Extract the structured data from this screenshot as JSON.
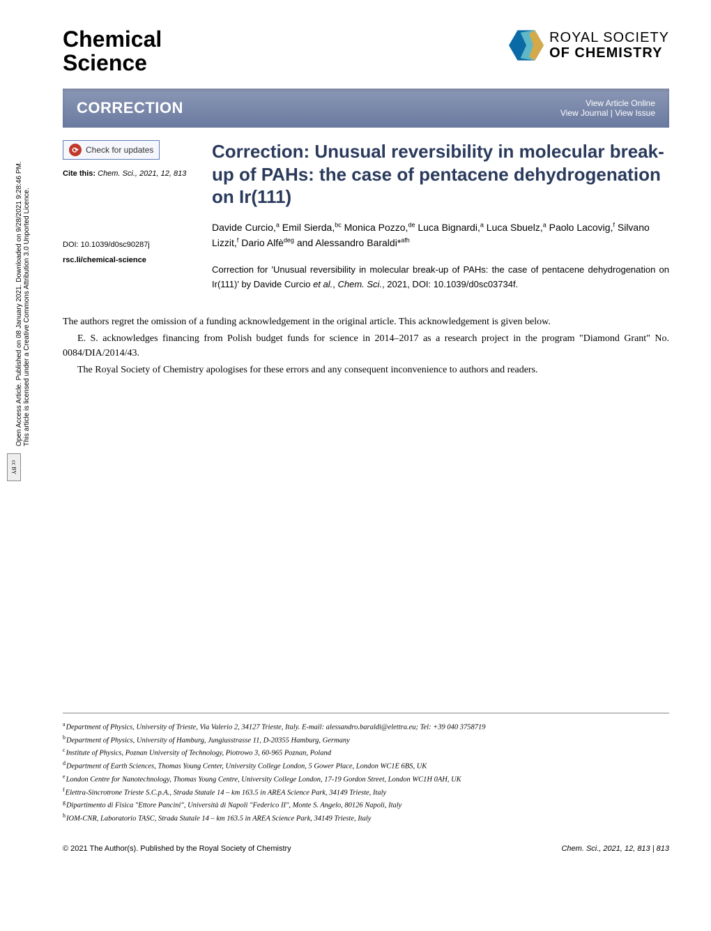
{
  "journal": {
    "name_line1": "Chemical",
    "name_line2": "Science"
  },
  "publisher_logo": {
    "line1": "ROYAL SOCIETY",
    "line2": "OF CHEMISTRY",
    "icon_colors": {
      "left": "#0a6aa6",
      "mid": "#5eb8c8",
      "right": "#d4a94a"
    }
  },
  "banner": {
    "category": "CORRECTION",
    "view_online": "View Article Online",
    "view_journal": "View Journal",
    "view_issue": "View Issue"
  },
  "left": {
    "check_updates": "Check for updates",
    "cite_label": "Cite this:",
    "cite_ref": "Chem. Sci., 2021, 12, 813",
    "doi": "DOI: 10.1039/d0sc90287j",
    "rsc_li": "rsc.li/chemical-science"
  },
  "article": {
    "title": "Correction: Unusual reversibility in molecular break-up of PAHs: the case of pentacene dehydrogenation on Ir(111)",
    "authors_html": "Davide Curcio,<sup>a</sup> Emil Sierda,<sup>bc</sup> Monica Pozzo,<sup>de</sup> Luca Bignardi,<sup>a</sup> Luca Sbuelz,<sup>a</sup> Paolo Lacovig,<sup>f</sup> Silvano Lizzit,<sup>f</sup> Dario Alfè<sup>deg</sup> and Alessandro Baraldi*<sup>afh</sup>",
    "correction_note": "Correction for 'Unusual reversibility in molecular break-up of PAHs: the case of pentacene dehydrogenation on Ir(111)' by Davide Curcio et al., Chem. Sci., 2021, DOI: 10.1039/d0sc03734f."
  },
  "body": {
    "p1": "The authors regret the omission of a funding acknowledgement in the original article. This acknowledgement is given below.",
    "p2": "E. S. acknowledges financing from Polish budget funds for science in 2014–2017 as a research project in the program \"Diamond Grant\" No. 0084/DIA/2014/43.",
    "p3": "The Royal Society of Chemistry apologises for these errors and any consequent inconvenience to authors and readers."
  },
  "affiliations": [
    {
      "sup": "a",
      "text": "Department of Physics, University of Trieste, Via Valerio 2, 34127 Trieste, Italy. E-mail: alessandro.baraldi@elettra.eu; Tel: +39 040 3758719"
    },
    {
      "sup": "b",
      "text": "Department of Physics, University of Hamburg, Jungiusstrasse 11, D-20355 Hamburg, Germany"
    },
    {
      "sup": "c",
      "text": "Institute of Physics, Poznan University of Technology, Piotrowo 3, 60-965 Poznan, Poland"
    },
    {
      "sup": "d",
      "text": "Department of Earth Sciences, Thomas Young Center, University College London, 5 Gower Place, London WC1E 6BS, UK"
    },
    {
      "sup": "e",
      "text": "London Centre for Nanotechnology, Thomas Young Centre, University College London, 17-19 Gordon Street, London WC1H 0AH, UK"
    },
    {
      "sup": "f",
      "text": "Elettra-Sincrotrone Trieste S.C.p.A., Strada Statale 14 – km 163.5 in AREA Science Park, 34149 Trieste, Italy"
    },
    {
      "sup": "g",
      "text": "Dipartimento di Fisica \"Ettore Pancini\", Università di Napoli \"Federico II\", Monte S. Angelo, 80126 Napoli, Italy"
    },
    {
      "sup": "h",
      "text": "IOM-CNR, Laboratorio TASC, Strada Statale 14 – km 163.5 in AREA Science Park, 34149 Trieste, Italy"
    }
  ],
  "footer": {
    "copyright": "© 2021 The Author(s). Published by the Royal Society of Chemistry",
    "citation": "Chem. Sci., 2021, 12, 813 | 813"
  },
  "sidebar_license": {
    "line1": "Open Access Article. Published on 08 January 2021. Downloaded on 9/28/2021 9:28:46 PM.",
    "line2": "This article is licensed under a Creative Commons Attribution 3.0 Unported Licence.",
    "cc": "cc BY"
  }
}
